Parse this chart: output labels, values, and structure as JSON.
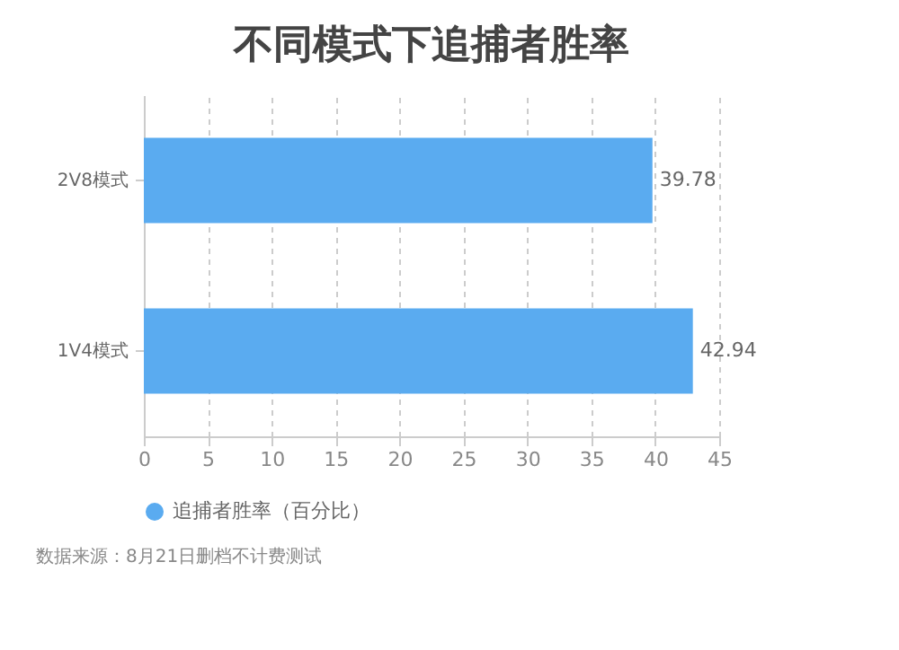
{
  "chart_data": {
    "type": "bar",
    "orientation": "horizontal",
    "title": "不同模式下追捕者胜率",
    "categories": [
      "2V8模式",
      "1V4模式"
    ],
    "series": [
      {
        "name": "追捕者胜率（百分比）",
        "color": "#5aabf0",
        "values": [
          39.78,
          42.94
        ]
      }
    ],
    "xlim": [
      0,
      45
    ],
    "xticks": [
      0,
      5,
      10,
      15,
      20,
      25,
      30,
      35,
      40,
      45
    ],
    "grid": "x",
    "legend": "bottom",
    "data_labels": true,
    "annotations": [
      "数据来源：8月21日删档不计费测试"
    ]
  }
}
